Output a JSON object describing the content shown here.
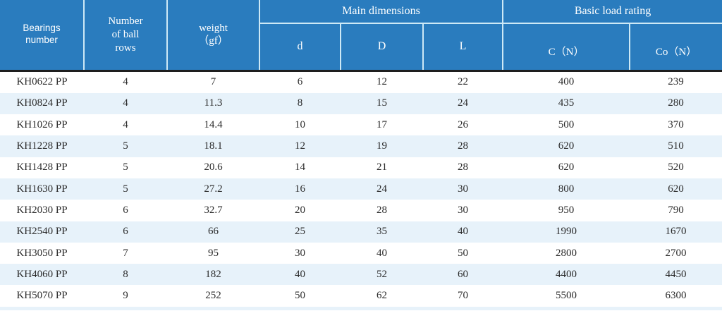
{
  "colors": {
    "header_bg": "#2A7CBE",
    "header_text": "#FFFFFF",
    "divider": "#CDE9F6",
    "header_underline": "#1E1E1E",
    "row_alt_bg": "#E7F2FA",
    "row_bg": "#FFFFFF",
    "cell_text": "#2B2B2B"
  },
  "table": {
    "header": {
      "bearings_number": "Bearings\nnumber",
      "ball_rows": "Number\nof ball\nrows",
      "weight": "weight\n（gf）",
      "main_dimensions": "Main dimensions",
      "basic_load_rating": "Basic load rating",
      "sub_columns": [
        "d",
        "D",
        "L",
        "C（N）",
        "Co（N）"
      ]
    },
    "column_keys": [
      "bearings-number",
      "ball-rows",
      "weight",
      "d",
      "D",
      "L",
      "C-N",
      "Co-N"
    ],
    "rows": [
      [
        "KH0622 PP",
        "4",
        "7",
        "6",
        "12",
        "22",
        "400",
        "239"
      ],
      [
        "KH0824 PP",
        "4",
        "11.3",
        "8",
        "15",
        "24",
        "435",
        "280"
      ],
      [
        "KH1026 PP",
        "4",
        "14.4",
        "10",
        "17",
        "26",
        "500",
        "370"
      ],
      [
        "KH1228 PP",
        "5",
        "18.1",
        "12",
        "19",
        "28",
        "620",
        "510"
      ],
      [
        "KH1428 PP",
        "5",
        "20.6",
        "14",
        "21",
        "28",
        "620",
        "520"
      ],
      [
        "KH1630 PP",
        "5",
        "27.2",
        "16",
        "24",
        "30",
        "800",
        "620"
      ],
      [
        "KH2030 PP",
        "6",
        "32.7",
        "20",
        "28",
        "30",
        "950",
        "790"
      ],
      [
        "KH2540 PP",
        "6",
        "66",
        "25",
        "35",
        "40",
        "1990",
        "1670"
      ],
      [
        "KH3050 PP",
        "7",
        "95",
        "30",
        "40",
        "50",
        "2800",
        "2700"
      ],
      [
        "KH4060 PP",
        "8",
        "182",
        "40",
        "52",
        "60",
        "4400",
        "4450"
      ],
      [
        "KH5070 PP",
        "9",
        "252",
        "50",
        "62",
        "70",
        "5500",
        "6300"
      ]
    ]
  }
}
